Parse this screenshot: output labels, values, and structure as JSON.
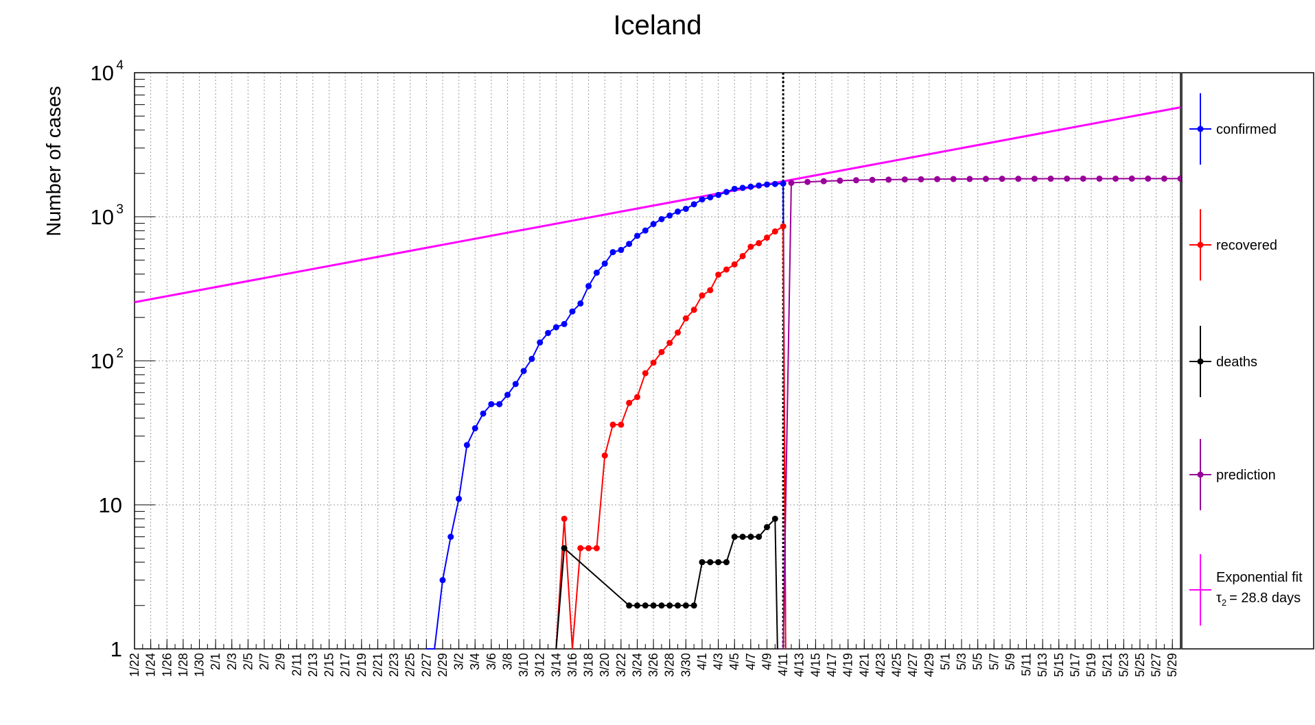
{
  "chart_data": {
    "type": "line",
    "title": "Iceland",
    "ylabel": "Number of cases",
    "xlabel": "",
    "yscale": "log",
    "ylim": [
      1,
      10000
    ],
    "y_ticks": [
      {
        "value": 1,
        "label": "1"
      },
      {
        "value": 10,
        "label": "10"
      },
      {
        "value": 100,
        "label": "10",
        "exp": "2"
      },
      {
        "value": 1000,
        "label": "10",
        "exp": "3"
      },
      {
        "value": 10000,
        "label": "10",
        "exp": "4"
      }
    ],
    "x_start": "1/22",
    "x_end": "5/30",
    "x_ticks": [
      "1/22",
      "1/24",
      "1/26",
      "1/28",
      "1/30",
      "2/1",
      "2/3",
      "2/5",
      "2/7",
      "2/9",
      "2/11",
      "2/13",
      "2/15",
      "2/17",
      "2/19",
      "2/21",
      "2/23",
      "2/25",
      "2/27",
      "2/29",
      "3/2",
      "3/4",
      "3/6",
      "3/8",
      "3/10",
      "3/12",
      "3/14",
      "3/16",
      "3/18",
      "3/20",
      "3/22",
      "3/24",
      "3/26",
      "3/28",
      "3/30",
      "4/1",
      "4/3",
      "4/5",
      "4/7",
      "4/9",
      "4/11",
      "4/13",
      "4/15",
      "4/17",
      "4/19",
      "4/21",
      "4/23",
      "4/25",
      "4/27",
      "4/29",
      "5/1",
      "5/3",
      "5/5",
      "5/7",
      "5/9",
      "5/11",
      "5/13",
      "5/15",
      "5/17",
      "5/19",
      "5/21",
      "5/23",
      "5/25",
      "5/27",
      "5/29"
    ],
    "grid": true,
    "legend_position": "right",
    "vline_date": "4/11",
    "series": [
      {
        "name": "confirmed",
        "color": "#0000ff",
        "points": [
          [
            "2/28",
            1
          ],
          [
            "2/29",
            3
          ],
          [
            "3/1",
            6
          ],
          [
            "3/2",
            11
          ],
          [
            "3/3",
            26
          ],
          [
            "3/4",
            34
          ],
          [
            "3/5",
            43
          ],
          [
            "3/6",
            50
          ],
          [
            "3/7",
            50
          ],
          [
            "3/8",
            58
          ],
          [
            "3/9",
            69
          ],
          [
            "3/10",
            85
          ],
          [
            "3/11",
            103
          ],
          [
            "3/12",
            134
          ],
          [
            "3/13",
            156
          ],
          [
            "3/14",
            171
          ],
          [
            "3/15",
            180
          ],
          [
            "3/16",
            220
          ],
          [
            "3/17",
            250
          ],
          [
            "3/18",
            330
          ],
          [
            "3/19",
            409
          ],
          [
            "3/20",
            473
          ],
          [
            "3/21",
            568
          ],
          [
            "3/22",
            588
          ],
          [
            "3/23",
            648
          ],
          [
            "3/24",
            737
          ],
          [
            "3/25",
            802
          ],
          [
            "3/26",
            890
          ],
          [
            "3/27",
            963
          ],
          [
            "3/28",
            1020
          ],
          [
            "3/29",
            1086
          ],
          [
            "3/30",
            1135
          ],
          [
            "3/31",
            1220
          ],
          [
            "4/1",
            1319
          ],
          [
            "4/2",
            1364
          ],
          [
            "4/3",
            1417
          ],
          [
            "4/4",
            1486
          ],
          [
            "4/5",
            1562
          ],
          [
            "4/6",
            1586
          ],
          [
            "4/7",
            1616
          ],
          [
            "4/8",
            1648
          ],
          [
            "4/9",
            1675
          ],
          [
            "4/10",
            1689
          ],
          [
            "4/11",
            1701
          ]
        ]
      },
      {
        "name": "recovered",
        "color": "#ff0000",
        "points": [
          [
            "3/15",
            8
          ],
          [
            "3/16",
            1
          ],
          [
            "3/17",
            5
          ],
          [
            "3/18",
            5
          ],
          [
            "3/19",
            5
          ],
          [
            "3/20",
            22
          ],
          [
            "3/21",
            36
          ],
          [
            "3/22",
            36
          ],
          [
            "3/23",
            51
          ],
          [
            "3/24",
            56
          ],
          [
            "3/25",
            82
          ],
          [
            "3/26",
            97
          ],
          [
            "3/27",
            115
          ],
          [
            "3/28",
            133
          ],
          [
            "3/29",
            157
          ],
          [
            "3/30",
            197
          ],
          [
            "3/31",
            226
          ],
          [
            "4/1",
            284
          ],
          [
            "4/2",
            309
          ],
          [
            "4/3",
            396
          ],
          [
            "4/4",
            430
          ],
          [
            "4/5",
            467
          ],
          [
            "4/6",
            533
          ],
          [
            "4/7",
            619
          ],
          [
            "4/8",
            656
          ],
          [
            "4/9",
            716
          ],
          [
            "4/10",
            791
          ],
          [
            "4/11",
            858
          ]
        ]
      },
      {
        "name": "deaths",
        "color": "#000000",
        "points": [
          [
            "3/15",
            5
          ],
          [
            "3/23",
            2
          ],
          [
            "3/24",
            2
          ],
          [
            "3/25",
            2
          ],
          [
            "3/26",
            2
          ],
          [
            "3/27",
            2
          ],
          [
            "3/28",
            2
          ],
          [
            "3/29",
            2
          ],
          [
            "3/30",
            2
          ],
          [
            "3/31",
            2
          ],
          [
            "4/1",
            4
          ],
          [
            "4/2",
            4
          ],
          [
            "4/3",
            4
          ],
          [
            "4/4",
            4
          ],
          [
            "4/5",
            6
          ],
          [
            "4/6",
            6
          ],
          [
            "4/7",
            6
          ],
          [
            "4/8",
            6
          ],
          [
            "4/9",
            7
          ],
          [
            "4/10",
            8
          ]
        ]
      },
      {
        "name": "prediction",
        "color": "#990099",
        "points": [
          [
            "4/12",
            1720
          ],
          [
            "4/14",
            1745
          ],
          [
            "4/16",
            1765
          ],
          [
            "4/18",
            1780
          ],
          [
            "4/20",
            1792
          ],
          [
            "4/22",
            1802
          ],
          [
            "4/24",
            1810
          ],
          [
            "4/26",
            1816
          ],
          [
            "4/28",
            1821
          ],
          [
            "4/30",
            1825
          ],
          [
            "5/2",
            1828
          ],
          [
            "5/4",
            1830
          ],
          [
            "5/6",
            1832
          ],
          [
            "5/8",
            1834
          ],
          [
            "5/10",
            1835
          ],
          [
            "5/12",
            1836
          ],
          [
            "5/14",
            1837
          ],
          [
            "5/16",
            1838
          ],
          [
            "5/18",
            1838
          ],
          [
            "5/20",
            1839
          ],
          [
            "5/22",
            1839
          ],
          [
            "5/24",
            1840
          ],
          [
            "5/26",
            1840
          ],
          [
            "5/28",
            1840
          ],
          [
            "5/30",
            1840
          ]
        ]
      },
      {
        "name": "Exponential fit",
        "legend_extra": "= 28.8 days",
        "tau_symbol": "τ",
        "tau_sub": "2",
        "color": "#ff00ff",
        "fit_start": [
          "1/22",
          255
        ],
        "fit_end": [
          "5/30",
          5750
        ]
      }
    ]
  }
}
